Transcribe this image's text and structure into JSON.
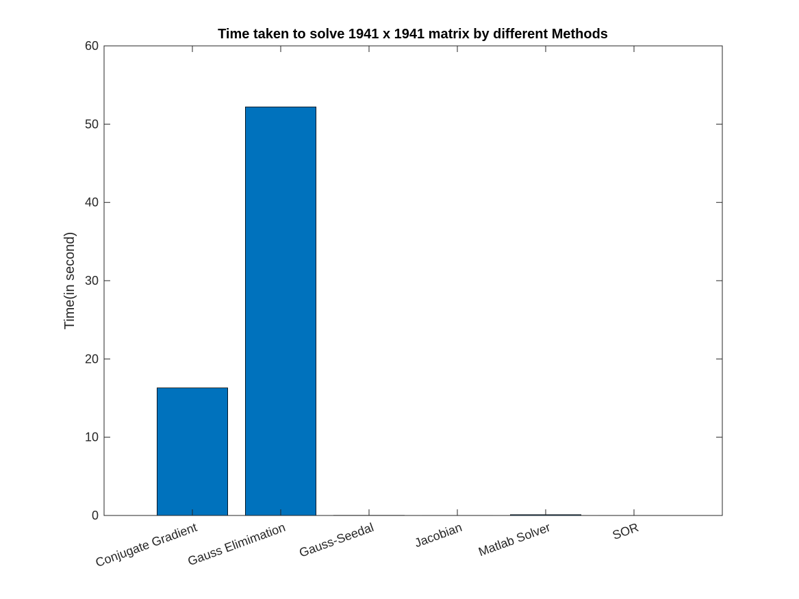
{
  "chart_data": {
    "type": "bar",
    "title": "Time taken to solve 1941 x 1941 matrix by different Methods",
    "xlabel": "",
    "ylabel": "Time(in second)",
    "categories": [
      "Conjugate Gradient",
      "Gauss Elimimation",
      "Gauss-Seedal",
      "Jacobian",
      "Matlab Solver",
      "SOR"
    ],
    "values": [
      16.3,
      52.2,
      0.02,
      0.01,
      0.1,
      0.01
    ],
    "ylim": [
      0,
      60
    ],
    "yticks": [
      "0",
      "10",
      "20",
      "30",
      "40",
      "50",
      "60"
    ],
    "grid": false,
    "bar_color": "#0072BD",
    "edge_color": "#000000"
  }
}
